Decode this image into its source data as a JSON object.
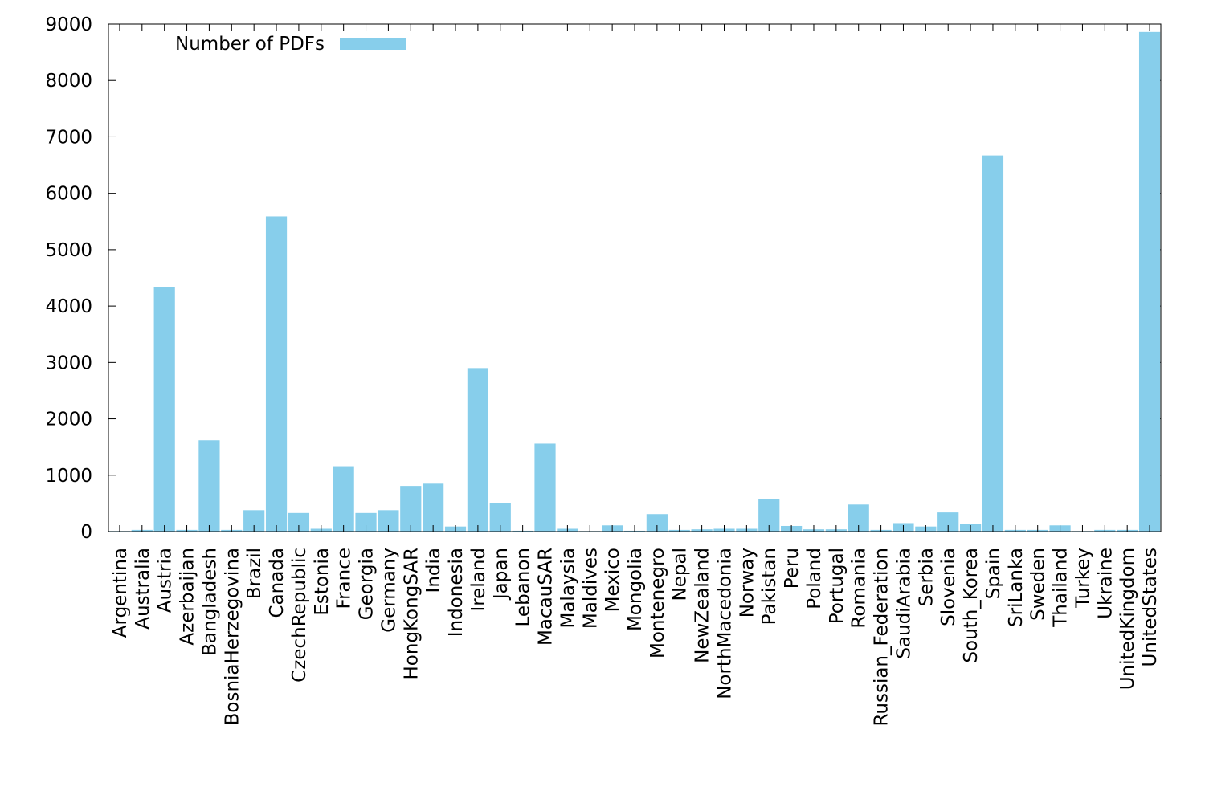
{
  "chart_data": {
    "type": "bar",
    "title": "",
    "xlabel": "",
    "ylabel": "",
    "ylim": [
      0,
      9000
    ],
    "yticks": [
      0,
      1000,
      2000,
      3000,
      4000,
      5000,
      6000,
      7000,
      8000,
      9000
    ],
    "grid": false,
    "legend": {
      "placement": "top-left"
    },
    "bar_color": "#87ceeb",
    "categories": [
      "Argentina",
      "Australia",
      "Austria",
      "Azerbaijan",
      "Bangladesh",
      "BosniaHerzegovina",
      "Brazil",
      "Canada",
      "CzechRepublic",
      "Estonia",
      "France",
      "Georgia",
      "Germany",
      "HongKongSAR",
      "India",
      "Indonesia",
      "Ireland",
      "Japan",
      "Lebanon",
      "MacauSAR",
      "Malaysia",
      "Maldives",
      "Mexico",
      "Mongolia",
      "Montenegro",
      "Nepal",
      "NewZealand",
      "NorthMacedonia",
      "Norway",
      "Pakistan",
      "Peru",
      "Poland",
      "Portugal",
      "Romania",
      "Russian_Federation",
      "SaudiArabia",
      "Serbia",
      "Slovenia",
      "South_Korea",
      "Spain",
      "SriLanka",
      "Sweden",
      "Thailand",
      "Turkey",
      "Ukraine",
      "UnitedKingdom",
      "UnitedStates"
    ],
    "series": [
      {
        "name": "Number of PDFs",
        "values": [
          10,
          30,
          4340,
          30,
          1620,
          30,
          380,
          5590,
          330,
          50,
          1160,
          330,
          380,
          810,
          850,
          90,
          2900,
          500,
          15,
          1560,
          50,
          10,
          110,
          15,
          310,
          30,
          40,
          50,
          50,
          580,
          100,
          40,
          40,
          480,
          30,
          150,
          90,
          340,
          130,
          6670,
          30,
          30,
          110,
          10,
          30,
          30,
          8860
        ]
      }
    ]
  }
}
